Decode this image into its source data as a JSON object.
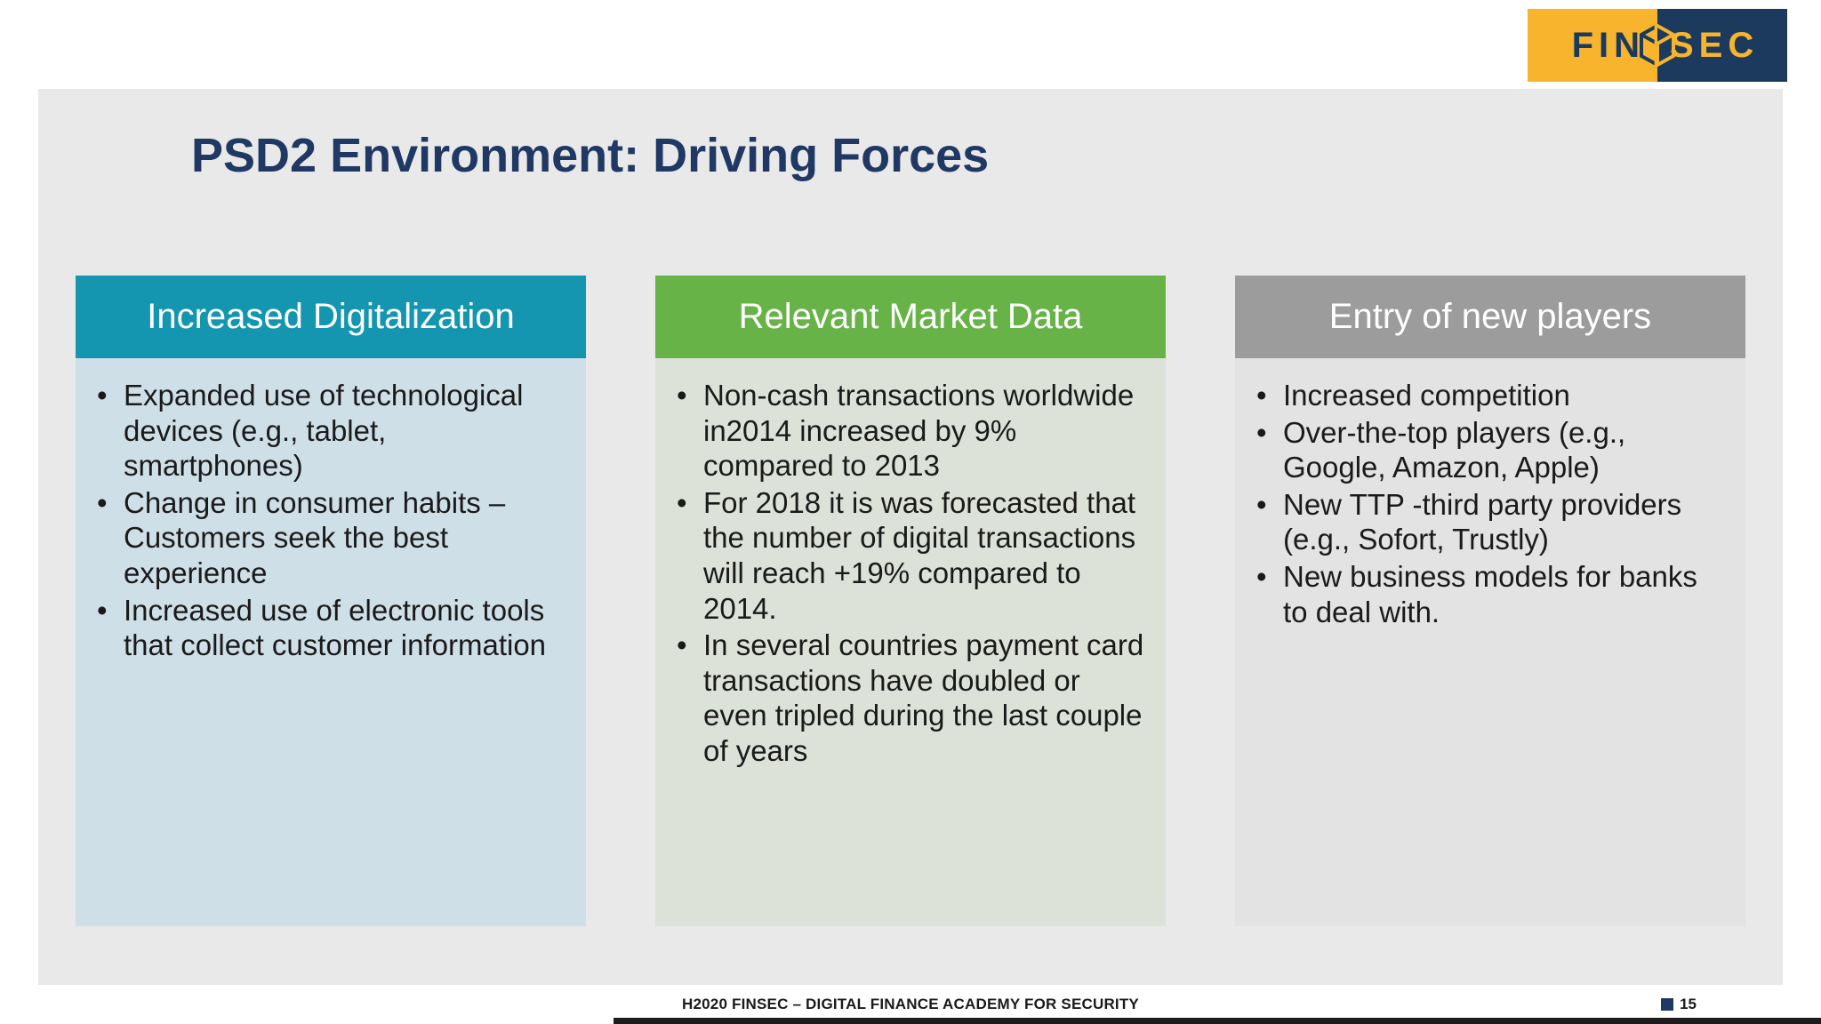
{
  "logo": {
    "fin": "FIN",
    "sec": "SEC",
    "colors": {
      "yellow": "#f7b42c",
      "navy": "#1b3a5e"
    }
  },
  "slide": {
    "title": "PSD2 Environment: Driving Forces",
    "title_color": "#1f3864",
    "background": "#e9e9e9"
  },
  "columns": [
    {
      "header": "Increased Digitalization",
      "header_color": "#1496b1",
      "body_color": "#cfdfe8",
      "bullets": [
        "Expanded use of technological devices (e.g., tablet, smartphones)",
        "Change in consumer habits – Customers seek the best experience",
        "Increased use of electronic tools that collect customer information"
      ]
    },
    {
      "header": "Relevant Market Data",
      "header_color": "#67b348",
      "body_color": "#dde2d8",
      "bullets": [
        "Non-cash transactions worldwide in2014 increased by  9% compared to 2013",
        "For 2018 it is was forecasted that the number of digital transactions will reach +19% compared to 2014.",
        "In several countries payment card transactions have doubled or even tripled during the last couple of years"
      ]
    },
    {
      "header": "Entry of new players",
      "header_color": "#9c9c9c",
      "body_color": "#e3e3e3",
      "bullets": [
        "Increased competition",
        "Over-the-top players (e.g., Google, Amazon, Apple)",
        "New TTP -third party providers (e.g., Sofort, Trustly)",
        "New business models for banks to deal with."
      ]
    }
  ],
  "footer": {
    "text": "H2020 FINSEC – DIGITAL FINANCE ACADEMY FOR SECURITY",
    "page": "15",
    "marker_color": "#1f3864"
  }
}
